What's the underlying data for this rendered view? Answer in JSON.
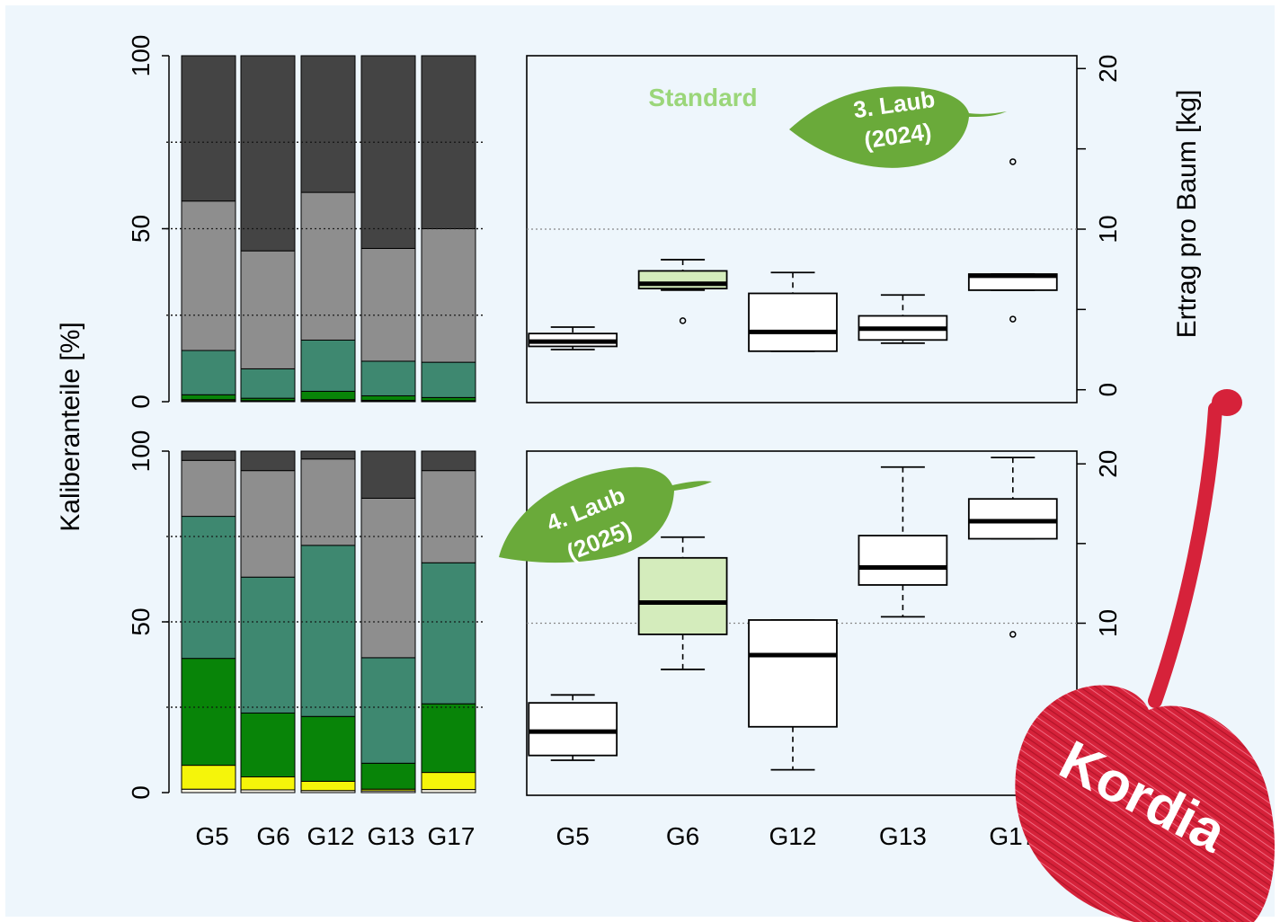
{
  "y_axis_left_label": "Kaliberanteile [%]",
  "y_axis_right_label": "Ertrag pro Baum [kg]",
  "badge_standard": "Standard",
  "leaf_top": {
    "line1": "3. Laub",
    "line2": "(2024)"
  },
  "leaf_bottom": {
    "line1": "4. Laub",
    "line2": "(2025)"
  },
  "cherry_label": "Kordia",
  "colors": {
    "background": "#eef6fc",
    "cal_1": "#f8f5e8",
    "cal_2": "#f5f50a",
    "cal_3": "#088408",
    "cal_4": "#3e8870",
    "cal_5": "#8e8e8e",
    "cal_6": "#444444",
    "standard_box": "#d4ecbc",
    "standard_text": "#9bd67a",
    "leaf": "#6aaa3a",
    "cherry": "#d6223a"
  },
  "chart_data": [
    {
      "type": "bar",
      "stacked": true,
      "panel": "top-left",
      "categories": [
        "G5",
        "G6",
        "G12",
        "G13",
        "G17"
      ],
      "ylim": [
        0,
        100
      ],
      "yticks": [
        0,
        50,
        100
      ],
      "series_colors": [
        "#f8f5e8",
        "#f5f50a",
        "#088408",
        "#3e8870",
        "#8e8e8e",
        "#444444"
      ],
      "series": [
        {
          "values": [
            0.3,
            0.2,
            0.3,
            0.2,
            0.2
          ]
        },
        {
          "values": [
            0.3,
            0.1,
            0.3,
            0.2,
            0.1
          ]
        },
        {
          "values": [
            1.4,
            0.7,
            2.4,
            1.3,
            0.9
          ]
        },
        {
          "values": [
            12.8,
            8.5,
            14.8,
            10.0,
            10.2
          ]
        },
        {
          "values": [
            43.2,
            34.1,
            42.7,
            32.6,
            38.6
          ]
        },
        {
          "values": [
            42.0,
            56.4,
            39.5,
            55.7,
            50.0
          ]
        }
      ]
    },
    {
      "type": "bar",
      "stacked": true,
      "panel": "bottom-left",
      "categories": [
        "G5",
        "G6",
        "G12",
        "G13",
        "G17"
      ],
      "ylim": [
        0,
        100
      ],
      "yticks": [
        0,
        50,
        100
      ],
      "series_colors": [
        "#f8f5e8",
        "#f5f50a",
        "#088408",
        "#3e8870",
        "#8e8e8e",
        "#444444"
      ],
      "series": [
        {
          "values": [
            1.0,
            0.8,
            0.6,
            0.5,
            0.9
          ]
        },
        {
          "values": [
            7.0,
            3.8,
            2.7,
            0.5,
            5.0
          ]
        },
        {
          "values": [
            31.3,
            18.7,
            19.0,
            7.6,
            20.1
          ]
        },
        {
          "values": [
            41.6,
            39.8,
            50.1,
            30.9,
            41.3
          ]
        },
        {
          "values": [
            16.4,
            31.2,
            25.3,
            46.7,
            27.0
          ]
        },
        {
          "values": [
            2.7,
            5.7,
            2.3,
            13.8,
            5.7
          ]
        }
      ]
    },
    {
      "type": "box",
      "panel": "top-right",
      "categories": [
        "G5",
        "G6",
        "G12",
        "G13",
        "G17"
      ],
      "ylim": [
        -0.8,
        20.8
      ],
      "yticks": [
        0,
        5,
        10,
        15,
        20
      ],
      "ytick_labels": [
        "0",
        "",
        "10",
        "",
        "20"
      ],
      "reference_line": 10,
      "highlight": "G6",
      "boxes": [
        {
          "min": 2.5,
          "q1": 2.7,
          "median": 3.0,
          "q3": 3.5,
          "max": 3.9,
          "outliers": []
        },
        {
          "min": 6.2,
          "q1": 6.3,
          "median": 6.6,
          "q3": 7.4,
          "max": 8.1,
          "outliers": [
            4.3
          ]
        },
        {
          "min": 2.4,
          "q1": 2.4,
          "median": 3.6,
          "q3": 6.0,
          "max": 7.3,
          "outliers": []
        },
        {
          "min": 2.9,
          "q1": 3.1,
          "median": 3.8,
          "q3": 4.6,
          "max": 5.9,
          "outliers": []
        },
        {
          "min": 6.2,
          "q1": 6.2,
          "median": 7.1,
          "q3": 7.2,
          "max": 7.2,
          "outliers": [
            4.4,
            14.2
          ]
        }
      ]
    },
    {
      "type": "box",
      "panel": "bottom-right",
      "categories": [
        "G5",
        "G6",
        "G12",
        "G13",
        "G17"
      ],
      "ylim": [
        -0.8,
        20.8
      ],
      "yticks": [
        0,
        5,
        10,
        15,
        20
      ],
      "ytick_labels": [
        "0",
        "",
        "10",
        "",
        "20"
      ],
      "reference_line": 10,
      "highlight": "G6",
      "boxes": [
        {
          "min": 1.4,
          "q1": 1.7,
          "median": 3.2,
          "q3": 5.0,
          "max": 5.5,
          "outliers": []
        },
        {
          "min": 7.1,
          "q1": 9.3,
          "median": 11.3,
          "q3": 14.1,
          "max": 15.4,
          "outliers": []
        },
        {
          "min": 0.8,
          "q1": 3.5,
          "median": 8.0,
          "q3": 10.2,
          "max": 10.2,
          "outliers": []
        },
        {
          "min": 10.4,
          "q1": 12.4,
          "median": 13.5,
          "q3": 15.5,
          "max": 19.8,
          "outliers": []
        },
        {
          "min": 15.3,
          "q1": 15.3,
          "median": 16.4,
          "q3": 17.8,
          "max": 20.4,
          "outliers": [
            9.3
          ]
        }
      ]
    }
  ]
}
